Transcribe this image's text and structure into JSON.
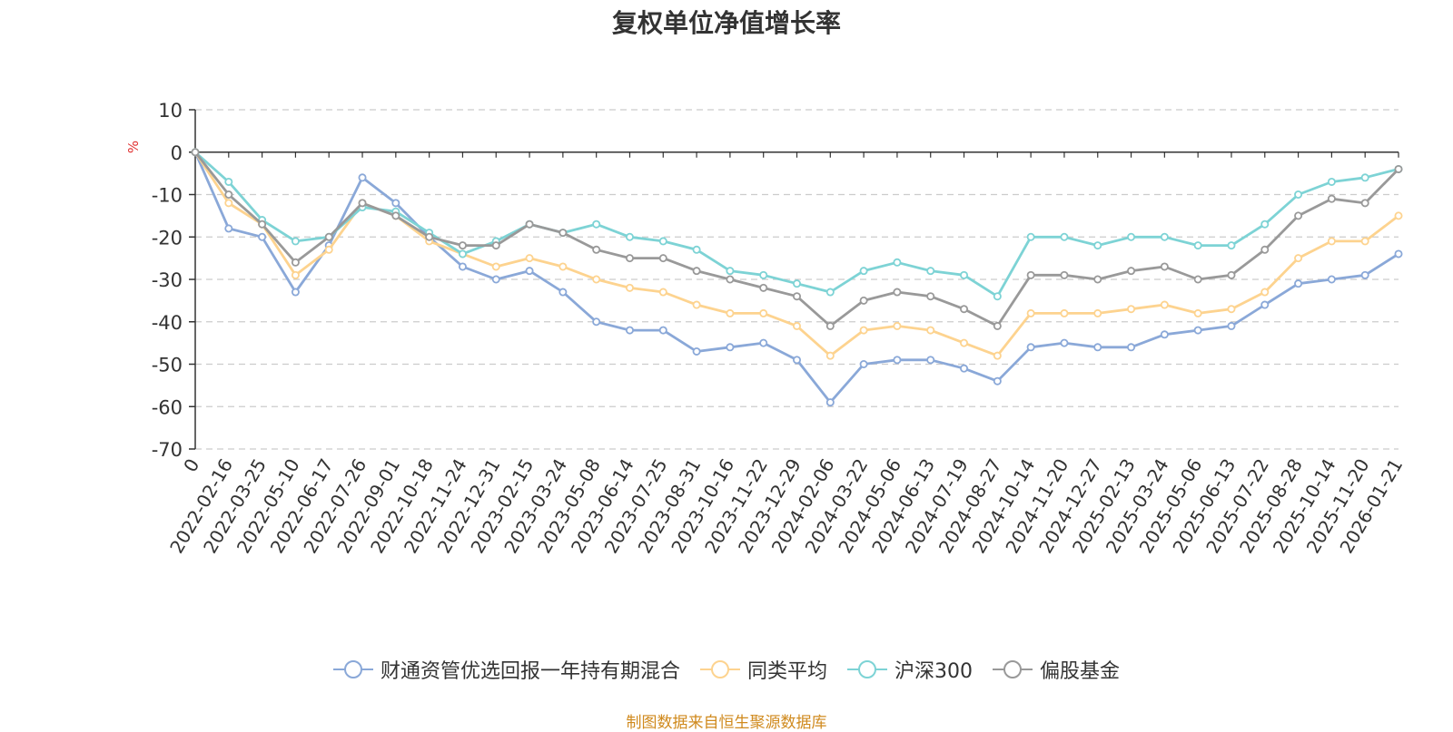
{
  "chart_data": {
    "type": "line",
    "title": "复权单位净值增长率",
    "ylabel": "%",
    "xlabel": "",
    "ylim": [
      -70,
      10
    ],
    "yticks": [
      10,
      0,
      -10,
      -20,
      -30,
      -40,
      -50,
      -60,
      -70
    ],
    "grid": true,
    "legend_position": "bottom",
    "categories": [
      "0",
      "2022-02-16",
      "2022-03-25",
      "2022-05-10",
      "2022-06-17",
      "2022-07-26",
      "2022-09-01",
      "2022-10-18",
      "2022-11-24",
      "2022-12-31",
      "2023-02-15",
      "2023-03-24",
      "2023-05-08",
      "2023-06-14",
      "2023-07-25",
      "2023-08-31",
      "2023-10-16",
      "2023-11-22",
      "2023-12-29",
      "2024-02-06",
      "2024-03-22",
      "2024-05-06",
      "2024-06-13",
      "2024-07-19",
      "2024-08-27",
      "2024-10-14",
      "2024-11-20",
      "2024-12-27",
      "2025-02-13",
      "2025-03-24",
      "2025-05-06",
      "2025-06-13",
      "2025-07-22",
      "2025-08-28",
      "2025-10-14",
      "2025-11-20",
      "2026-01-21"
    ],
    "series": [
      {
        "name": "财通资管优选回报一年持有期混合",
        "color": "#8aa8d8",
        "values": [
          0,
          -18,
          -20,
          -33,
          -22,
          -6,
          -12,
          -20,
          -27,
          -30,
          -28,
          -33,
          -40,
          -42,
          -42,
          -47,
          -46,
          -45,
          -49,
          -59,
          -50,
          -49,
          -49,
          -51,
          -54,
          -46,
          -45,
          -46,
          -46,
          -43,
          -42,
          -41,
          -36,
          -31,
          -30,
          -29,
          -24
        ]
      },
      {
        "name": "同类平均",
        "color": "#fdd38f",
        "values": [
          0,
          -12,
          -17,
          -29,
          -23,
          -12,
          -15,
          -21,
          -24,
          -27,
          -25,
          -27,
          -30,
          -32,
          -33,
          -36,
          -38,
          -38,
          -41,
          -48,
          -42,
          -41,
          -42,
          -45,
          -48,
          -38,
          -38,
          -38,
          -37,
          -36,
          -38,
          -37,
          -33,
          -25,
          -21,
          -21,
          -15
        ]
      },
      {
        "name": "沪深300",
        "color": "#7dd3d5",
        "values": [
          0,
          -7,
          -16,
          -21,
          -20,
          -13,
          -14,
          -19,
          -24,
          -21,
          -17,
          -19,
          -17,
          -20,
          -21,
          -23,
          -28,
          -29,
          -31,
          -33,
          -28,
          -26,
          -28,
          -29,
          -34,
          -20,
          -20,
          -22,
          -20,
          -20,
          -22,
          -22,
          -17,
          -10,
          -7,
          -6,
          -4
        ]
      },
      {
        "name": "偏股基金",
        "color": "#999999",
        "values": [
          0,
          -10,
          -17,
          -26,
          -20,
          -12,
          -15,
          -20,
          -22,
          -22,
          -17,
          -19,
          -23,
          -25,
          -25,
          -28,
          -30,
          -32,
          -34,
          -41,
          -35,
          -33,
          -34,
          -37,
          -41,
          -29,
          -29,
          -30,
          -28,
          -27,
          -30,
          -29,
          -23,
          -15,
          -11,
          -12,
          -4
        ]
      }
    ]
  },
  "source_note": "制图数据来自恒生聚源数据库"
}
